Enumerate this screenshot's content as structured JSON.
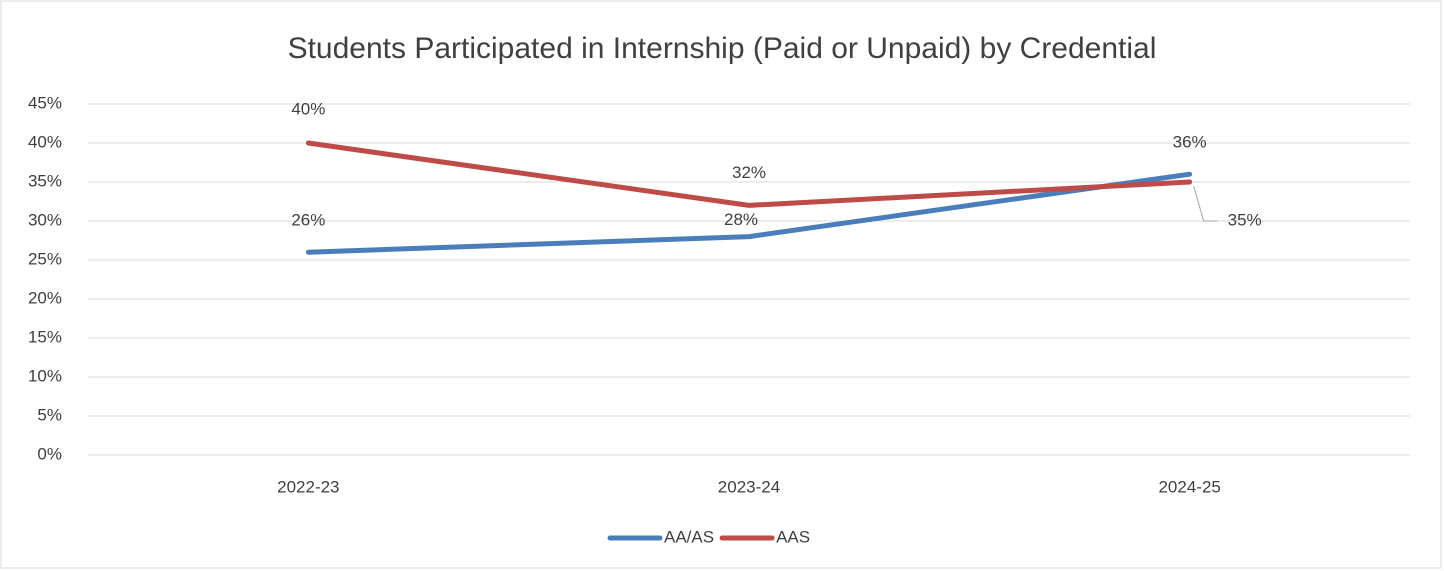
{
  "chart_data": {
    "type": "line",
    "title": "Students Participated in Internship (Paid or Unpaid) by Credential",
    "categories": [
      "2022-23",
      "2023-24",
      "2024-25"
    ],
    "series": [
      {
        "name": "AA/AS",
        "color": "#4a7ebb",
        "values": [
          26,
          28,
          36
        ],
        "value_labels": [
          "26%",
          "28%",
          "36%"
        ]
      },
      {
        "name": "AAS",
        "color": "#be4b48",
        "values": [
          40,
          32,
          35
        ],
        "value_labels": [
          "40%",
          "32%",
          "35%"
        ]
      }
    ],
    "ylim": [
      0,
      45
    ],
    "yticks": [
      {
        "value": 0,
        "label": "0%"
      },
      {
        "value": 5,
        "label": "5%"
      },
      {
        "value": 10,
        "label": "10%"
      },
      {
        "value": 15,
        "label": "15%"
      },
      {
        "value": 20,
        "label": "20%"
      },
      {
        "value": 25,
        "label": "25%"
      },
      {
        "value": 30,
        "label": "30%"
      },
      {
        "value": 35,
        "label": "35%"
      },
      {
        "value": 40,
        "label": "40%"
      },
      {
        "value": 45,
        "label": "45%"
      }
    ],
    "grid": true,
    "legend": "bottom"
  }
}
